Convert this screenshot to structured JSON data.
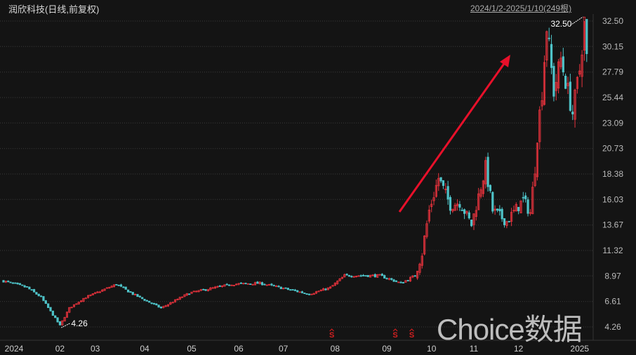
{
  "header": {
    "title": "润欣科技(日线,前复权)",
    "range": "2024/1/2-2025/1/10(249根)"
  },
  "watermark": "Choice数据",
  "chart_data": {
    "type": "candlestick",
    "candle_count": 249,
    "y_ticks": [
      "32.50",
      "30.15",
      "27.79",
      "25.44",
      "23.09",
      "20.73",
      "18.38",
      "16.03",
      "13.67",
      "11.32",
      "8.97",
      "6.61",
      "4.26"
    ],
    "ylim": [
      4.26,
      32.5
    ],
    "x_ticks": [
      "2024",
      "02",
      "03",
      "04",
      "05",
      "06",
      "07",
      "08",
      "09",
      "10",
      "11",
      "12",
      "2025"
    ],
    "x_tick_index": [
      0,
      24,
      39,
      60,
      80,
      100,
      119,
      141,
      163,
      182,
      200,
      219,
      245
    ],
    "close_path": [
      [
        0,
        8.5
      ],
      [
        10,
        7.9
      ],
      [
        16,
        7.0
      ],
      [
        24,
        4.4
      ],
      [
        28,
        6.0
      ],
      [
        34,
        6.9
      ],
      [
        48,
        8.2
      ],
      [
        55,
        7.3
      ],
      [
        67,
        6.0
      ],
      [
        79,
        7.4
      ],
      [
        97,
        8.2
      ],
      [
        109,
        8.3
      ],
      [
        130,
        7.3
      ],
      [
        139,
        7.9
      ],
      [
        145,
        9.0
      ],
      [
        160,
        9.0
      ],
      [
        169,
        8.3
      ],
      [
        175,
        9.0
      ],
      [
        178,
        11.0
      ],
      [
        179,
        12.5
      ],
      [
        181,
        15.0
      ],
      [
        185,
        18.0
      ],
      [
        190,
        15.5
      ],
      [
        194,
        15.8
      ],
      [
        199,
        13.7
      ],
      [
        205,
        19.0
      ],
      [
        208,
        15.0
      ],
      [
        214,
        14.0
      ],
      [
        221,
        16.0
      ],
      [
        224,
        14.8
      ],
      [
        226,
        19.0
      ],
      [
        227,
        22.0
      ],
      [
        229,
        26.0
      ],
      [
        231,
        32.0
      ],
      [
        234,
        26.0
      ],
      [
        237,
        29.0
      ],
      [
        242,
        24.0
      ],
      [
        245,
        28.0
      ],
      [
        247,
        32.5
      ],
      [
        248,
        29.0
      ]
    ],
    "annotations": {
      "high": "32.50",
      "low": "4.26"
    },
    "markers": {
      "label": "S",
      "index": [
        139,
        166,
        173
      ]
    },
    "colors": {
      "up": "#e8323c",
      "down": "#4ec3c8",
      "grid": "#3a3a3a",
      "arrow": "#e8102a",
      "marker": "#d42020"
    }
  }
}
